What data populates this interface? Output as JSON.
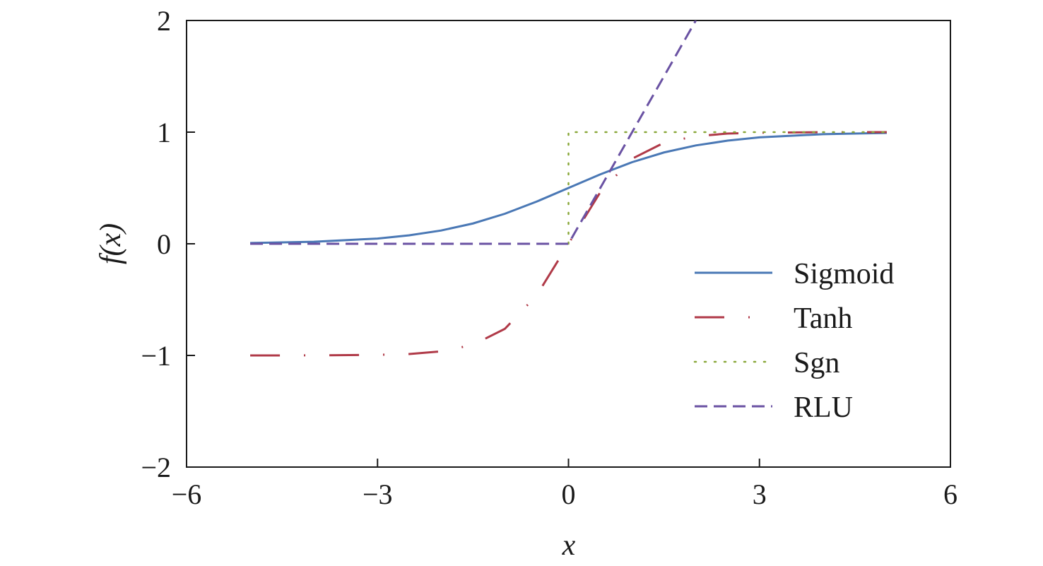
{
  "chart_data": {
    "type": "line",
    "title": "",
    "xlabel": "x",
    "ylabel": "f(x)",
    "xlim": [
      -6,
      6
    ],
    "ylim": [
      -2,
      2
    ],
    "xticks": [
      -6,
      -3,
      0,
      3,
      6
    ],
    "xtick_labels": [
      "−6",
      "−3",
      "0",
      "3",
      "6"
    ],
    "yticks": [
      -2,
      -1,
      0,
      1,
      2
    ],
    "ytick_labels": [
      "−2",
      "−1",
      "0",
      "1",
      "2"
    ],
    "grid": false,
    "legend_position": "lower-right",
    "series": [
      {
        "name": "Sigmoid",
        "color": "#4a78b5",
        "style": "solid",
        "x": [
          -5,
          -4,
          -3,
          -2.5,
          -2,
          -1.5,
          -1,
          -0.5,
          0,
          0.5,
          1,
          1.5,
          2,
          2.5,
          3,
          4,
          5
        ],
        "y": [
          0.007,
          0.018,
          0.047,
          0.076,
          0.119,
          0.182,
          0.269,
          0.378,
          0.5,
          0.622,
          0.731,
          0.818,
          0.881,
          0.924,
          0.953,
          0.982,
          0.993
        ]
      },
      {
        "name": "Tanh",
        "color": "#b03a48",
        "style": "dashdot",
        "x": [
          -5,
          -4,
          -3,
          -2.5,
          -2,
          -1.5,
          -1,
          -0.5,
          0,
          0.5,
          1,
          1.5,
          2,
          2.5,
          3,
          4,
          5
        ],
        "y": [
          -0.9999,
          -0.9993,
          -0.995,
          -0.987,
          -0.964,
          -0.905,
          -0.762,
          -0.462,
          0,
          0.462,
          0.762,
          0.905,
          0.964,
          0.987,
          0.995,
          0.9993,
          0.9999
        ]
      },
      {
        "name": "Sgn",
        "color": "#8aa83a",
        "style": "dotted",
        "x": [
          0,
          0,
          5
        ],
        "y": [
          0,
          1,
          1
        ]
      },
      {
        "name": "RLU",
        "color": "#6a52a3",
        "style": "dashed",
        "x": [
          -5,
          0,
          2
        ],
        "y": [
          0,
          0,
          2
        ]
      }
    ]
  }
}
